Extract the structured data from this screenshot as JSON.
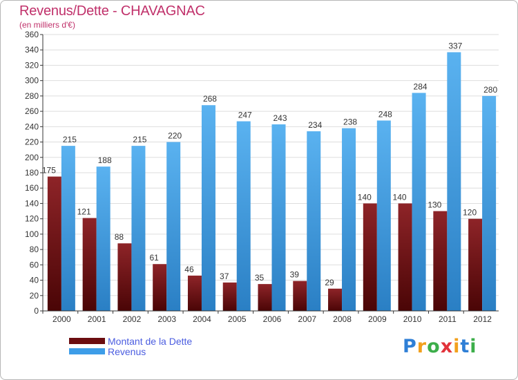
{
  "title": "Revenus/Dette - CHAVAGNAC",
  "subtitle": "(en milliers d'€)",
  "logo": {
    "letters": [
      "P",
      "r",
      "o",
      "x",
      "i",
      "t",
      "i"
    ],
    "colors": [
      "#2f7fd6",
      "#f2a01c",
      "#3cae4a",
      "#e2323a",
      "#f2a01c",
      "#2f7fd6",
      "#3cae4a"
    ]
  },
  "colors": {
    "dette": "#6b0d10",
    "revenus": "#3d9de8",
    "grid": "#dddddd",
    "axis": "#333333"
  },
  "chart_data": {
    "type": "bar",
    "title": "Revenus/Dette - CHAVAGNAC",
    "subtitle": "(en milliers d'€)",
    "categories": [
      "2000",
      "2001",
      "2002",
      "2003",
      "2004",
      "2005",
      "2006",
      "2007",
      "2008",
      "2009",
      "2010",
      "2011",
      "2012"
    ],
    "series": [
      {
        "name": "Montant de la Dette",
        "values": [
          175,
          121,
          88,
          61,
          46,
          37,
          35,
          39,
          29,
          140,
          140,
          130,
          120
        ]
      },
      {
        "name": "Revenus",
        "values": [
          215,
          188,
          215,
          220,
          268,
          247,
          243,
          234,
          238,
          248,
          284,
          337,
          280
        ]
      }
    ],
    "ylim": [
      0,
      360
    ],
    "ytick_step": 20,
    "grid": true,
    "legend_position": "bottom-left"
  }
}
